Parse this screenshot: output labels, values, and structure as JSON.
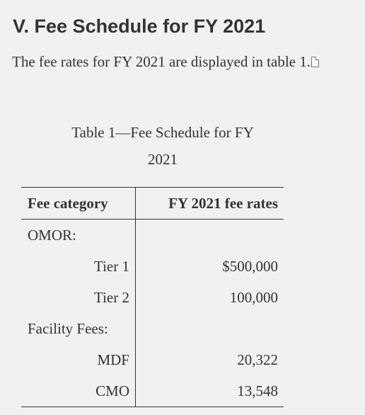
{
  "heading": "V. Fee Schedule for FY 2021",
  "intro": "The fee rates for FY 2021 are displayed in table 1.",
  "icons": {
    "intro_icon": "document-icon"
  },
  "table": {
    "caption_lines": [
      "Table 1—Fee Schedule for FY",
      "2021"
    ],
    "headers": [
      "Fee category",
      "FY 2021 fee rates"
    ],
    "rows": [
      {
        "category": "OMOR:",
        "rate": ""
      },
      {
        "category": "Tier 1",
        "rate": "$500,000"
      },
      {
        "category": "Tier 2",
        "rate": "100,000"
      },
      {
        "category": "Facility Fees:",
        "rate": ""
      },
      {
        "category": "MDF",
        "rate": "20,322"
      },
      {
        "category": "CMO",
        "rate": "13,548"
      }
    ]
  }
}
